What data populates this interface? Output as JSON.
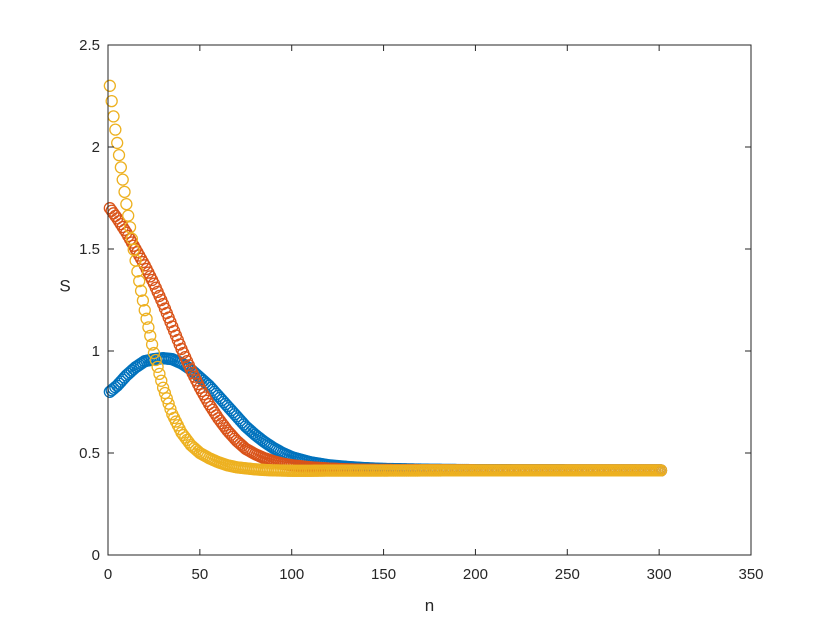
{
  "chart_data": {
    "type": "scatter",
    "xlabel": "n",
    "ylabel": "S",
    "xlim": [
      0,
      350
    ],
    "ylim": [
      0,
      2.5
    ],
    "xticks": [
      0,
      50,
      100,
      150,
      200,
      250,
      300,
      350
    ],
    "yticks": [
      0,
      0.5,
      1,
      1.5,
      2,
      2.5
    ],
    "xtick_labels": [
      "0",
      "50",
      "100",
      "150",
      "200",
      "250",
      "300",
      "350"
    ],
    "ytick_labels": [
      "0",
      "0.5",
      "1",
      "1.5",
      "2",
      "2.5"
    ],
    "grid": false,
    "legend": "none",
    "marker": "open-circle",
    "n_points": 301,
    "series": [
      {
        "color": "#0072BD",
        "x": [
          1,
          5,
          10,
          15,
          20,
          25,
          30,
          35,
          40,
          45,
          50,
          55,
          60,
          65,
          70,
          75,
          80,
          85,
          90,
          95,
          100,
          110,
          120,
          130,
          140,
          150,
          175,
          200,
          250,
          301
        ],
        "y": [
          0.8,
          0.83,
          0.88,
          0.92,
          0.95,
          0.96,
          0.965,
          0.96,
          0.94,
          0.91,
          0.87,
          0.83,
          0.78,
          0.73,
          0.68,
          0.63,
          0.59,
          0.555,
          0.525,
          0.5,
          0.48,
          0.455,
          0.44,
          0.432,
          0.426,
          0.422,
          0.418,
          0.416,
          0.415,
          0.415
        ]
      },
      {
        "color": "#D95319",
        "x": [
          1,
          5,
          10,
          15,
          20,
          25,
          30,
          35,
          40,
          45,
          50,
          55,
          60,
          65,
          70,
          75,
          80,
          85,
          90,
          95,
          100,
          110,
          120,
          130,
          140,
          150,
          175,
          200,
          250,
          301
        ],
        "y": [
          1.7,
          1.65,
          1.58,
          1.5,
          1.42,
          1.33,
          1.23,
          1.12,
          1.01,
          0.91,
          0.82,
          0.74,
          0.67,
          0.61,
          0.56,
          0.52,
          0.495,
          0.475,
          0.46,
          0.448,
          0.44,
          0.43,
          0.424,
          0.42,
          0.418,
          0.417,
          0.416,
          0.415,
          0.415,
          0.415
        ]
      },
      {
        "color": "#EDB120",
        "x": [
          1,
          3,
          5,
          7,
          10,
          13,
          16,
          20,
          25,
          30,
          35,
          40,
          45,
          50,
          55,
          60,
          65,
          70,
          75,
          80,
          85,
          90,
          100,
          110,
          120,
          150,
          200,
          250,
          301
        ],
        "y": [
          2.3,
          2.15,
          2.02,
          1.9,
          1.72,
          1.55,
          1.39,
          1.2,
          0.99,
          0.82,
          0.69,
          0.6,
          0.54,
          0.5,
          0.475,
          0.455,
          0.44,
          0.43,
          0.425,
          0.42,
          0.417,
          0.415,
          0.413,
          0.413,
          0.414,
          0.414,
          0.415,
          0.415,
          0.415
        ]
      }
    ]
  }
}
